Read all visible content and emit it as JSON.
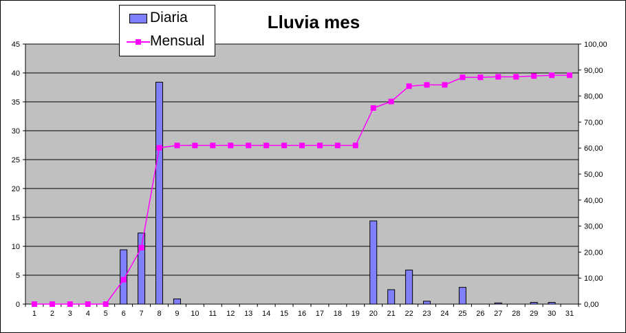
{
  "chart_data": {
    "type": "bar",
    "title": "Lluvia mes",
    "categories": [
      "1",
      "2",
      "3",
      "4",
      "5",
      "6",
      "7",
      "8",
      "9",
      "10",
      "11",
      "12",
      "13",
      "14",
      "15",
      "16",
      "17",
      "18",
      "19",
      "20",
      "21",
      "22",
      "23",
      "24",
      "25",
      "26",
      "27",
      "28",
      "29",
      "30",
      "31"
    ],
    "series": [
      {
        "name": "Diaria",
        "type": "bar",
        "axis": "left",
        "values": [
          0,
          0,
          0,
          0,
          0,
          9.4,
          12.3,
          38.4,
          0.9,
          0,
          0,
          0,
          0,
          0,
          0,
          0,
          0,
          0,
          0,
          14.4,
          2.5,
          5.9,
          0.5,
          0,
          2.9,
          0,
          0.2,
          0,
          0.3,
          0.3,
          0
        ]
      },
      {
        "name": "Mensual",
        "type": "line",
        "axis": "right",
        "values": [
          0,
          0,
          0,
          0,
          0,
          9.4,
          21.7,
          60.1,
          61.0,
          61.0,
          61.0,
          61.0,
          61.0,
          61.0,
          61.0,
          61.0,
          61.0,
          61.0,
          61.0,
          75.4,
          77.9,
          83.8,
          84.3,
          84.3,
          87.2,
          87.2,
          87.4,
          87.4,
          87.7,
          88.0,
          88.0
        ]
      }
    ],
    "y_left": {
      "min": 0,
      "max": 45,
      "ticks": [
        "0",
        "5",
        "10",
        "15",
        "20",
        "25",
        "30",
        "35",
        "40",
        "45"
      ]
    },
    "y_right": {
      "min": 0,
      "max": 100,
      "ticks": [
        "0,00",
        "10,00",
        "20,00",
        "30,00",
        "40,00",
        "50,00",
        "60,00",
        "70,00",
        "80,00",
        "90,00",
        "100,00"
      ]
    },
    "xlabel": "",
    "ylabel": "",
    "grid": true,
    "legend_position": "top-left",
    "colors": {
      "plot_background": "#c0c0c0",
      "bar_fill": "#8080ff",
      "bar_stroke": "#000000",
      "line": "#ff00ff",
      "gridline": "#000000"
    }
  }
}
